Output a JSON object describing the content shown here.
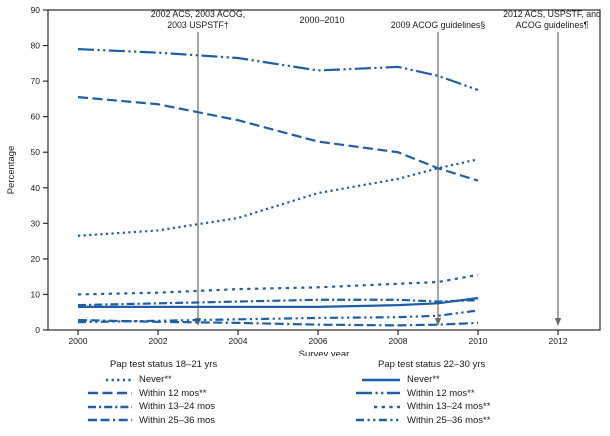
{
  "chart_data": {
    "type": "line",
    "period_label": "2000–2010",
    "xlabel": "Survey year",
    "ylabel": "Percentage",
    "ylim": [
      0,
      90
    ],
    "y_ticks": [
      0,
      10,
      20,
      30,
      40,
      50,
      60,
      70,
      80,
      90
    ],
    "x_ticks": [
      2000,
      2002,
      2004,
      2006,
      2008,
      2010,
      2012
    ],
    "x": [
      2000,
      2002,
      2004,
      2006,
      2008,
      2009,
      2010
    ],
    "line_color": "#1f5fa8",
    "annotation_color": "#6f6c5f",
    "axis_color": "#2b2b2b",
    "grid": "off",
    "legend_position": "bottom",
    "groups": [
      {
        "title": "Pap test status 18–21 yrs",
        "slug": "18-21",
        "series": [
          {
            "name": "Never**",
            "dash": "2.2 3.4",
            "values": [
              26.5,
              28.0,
              31.5,
              38.5,
              42.5,
              45.5,
              48.0
            ]
          },
          {
            "name": "Within 12 mos**",
            "dash": "10 4.5",
            "values": [
              65.5,
              63.5,
              59.0,
              53.0,
              50.0,
              45.5,
              42.0
            ]
          },
          {
            "name": "Within 13–24 mos",
            "dash": "8 3 2.2 3",
            "values": [
              7.0,
              7.5,
              8.0,
              8.5,
              8.5,
              8.0,
              8.4
            ]
          },
          {
            "name": "Within 25–36 mos",
            "dash": "9 3.5 9 3.5 2.2 3.5",
            "values": [
              2.8,
              2.3,
              2.0,
              1.5,
              1.3,
              1.5,
              2.0
            ]
          }
        ]
      },
      {
        "title": "Pap test status 22–30 yrs",
        "slug": "22-30",
        "series": [
          {
            "name": "Never**",
            "dash": null,
            "values": [
              6.5,
              6.5,
              6.5,
              6.5,
              7.0,
              7.5,
              9.0
            ]
          },
          {
            "name": "Within 12 mos**",
            "dash": "16 3.5 2.2 3.5 2.2 3.5",
            "values": [
              79.0,
              78.0,
              76.5,
              73.0,
              74.0,
              71.5,
              67.5
            ]
          },
          {
            "name": "Within 13–24 mos**",
            "dash": "3.2 4.5",
            "values": [
              10.0,
              10.5,
              11.5,
              12.0,
              13.0,
              13.5,
              15.5
            ]
          },
          {
            "name": "Within 25–36 mos**",
            "dash": "8 3.5 2.2 3.5 2.2 3.5",
            "values": [
              2.2,
              2.6,
              3.0,
              3.4,
              3.6,
              4.0,
              5.5
            ]
          }
        ]
      }
    ],
    "annotations": [
      {
        "year": 2003,
        "lines": [
          "2002 ACS, 2003 ACOG,",
          "2003 USPSTF†"
        ]
      },
      {
        "year": 2009,
        "lines": [
          "2009 ACOG guidelines§"
        ]
      },
      {
        "year": 2012,
        "lines": [
          "2012 ACS, USPSTF, and",
          "ACOG guidelines¶"
        ]
      }
    ]
  }
}
